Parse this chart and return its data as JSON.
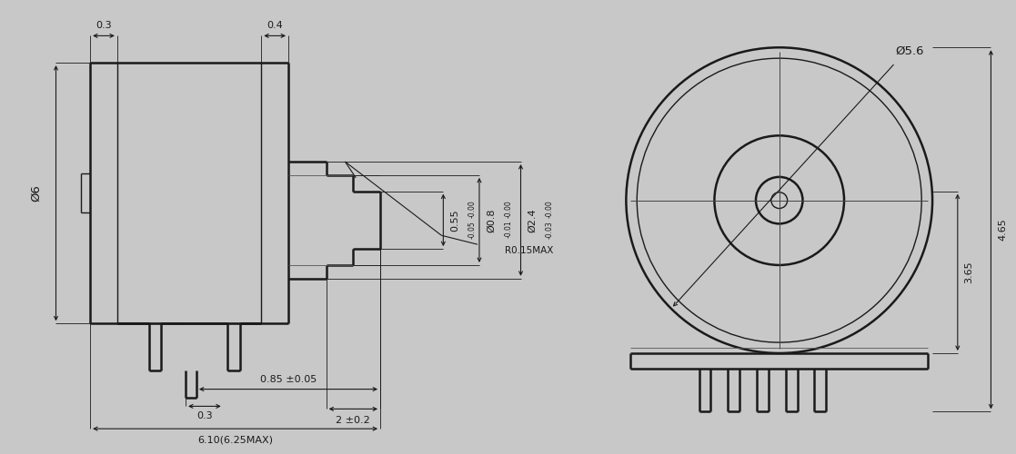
{
  "bg_color": "#c8c8c8",
  "lc": "#1a1a1a",
  "lw": 1.8,
  "tlw": 1.0,
  "fig_w": 10.94,
  "fig_h": 4.85,
  "ann": {
    "phi6": "Ø6",
    "d03t": "0.3",
    "d04": "0.4",
    "d055": "0.55",
    "tol055": "-0.00\n-0.05",
    "d08": "Ø0.8",
    "tol08": "-0.00\n-0.01",
    "d24": "Ø2.4",
    "tol24": "-0.00\n-0.03",
    "r015": "R0.15MAX",
    "d03b": "0.3",
    "d085": "0.85 ±0.05",
    "d2": "2 ±0.2",
    "d610": "6.10(6.25MAX)",
    "phi56": "Ø5.6",
    "d365": "3.65",
    "d465": "4.65"
  }
}
